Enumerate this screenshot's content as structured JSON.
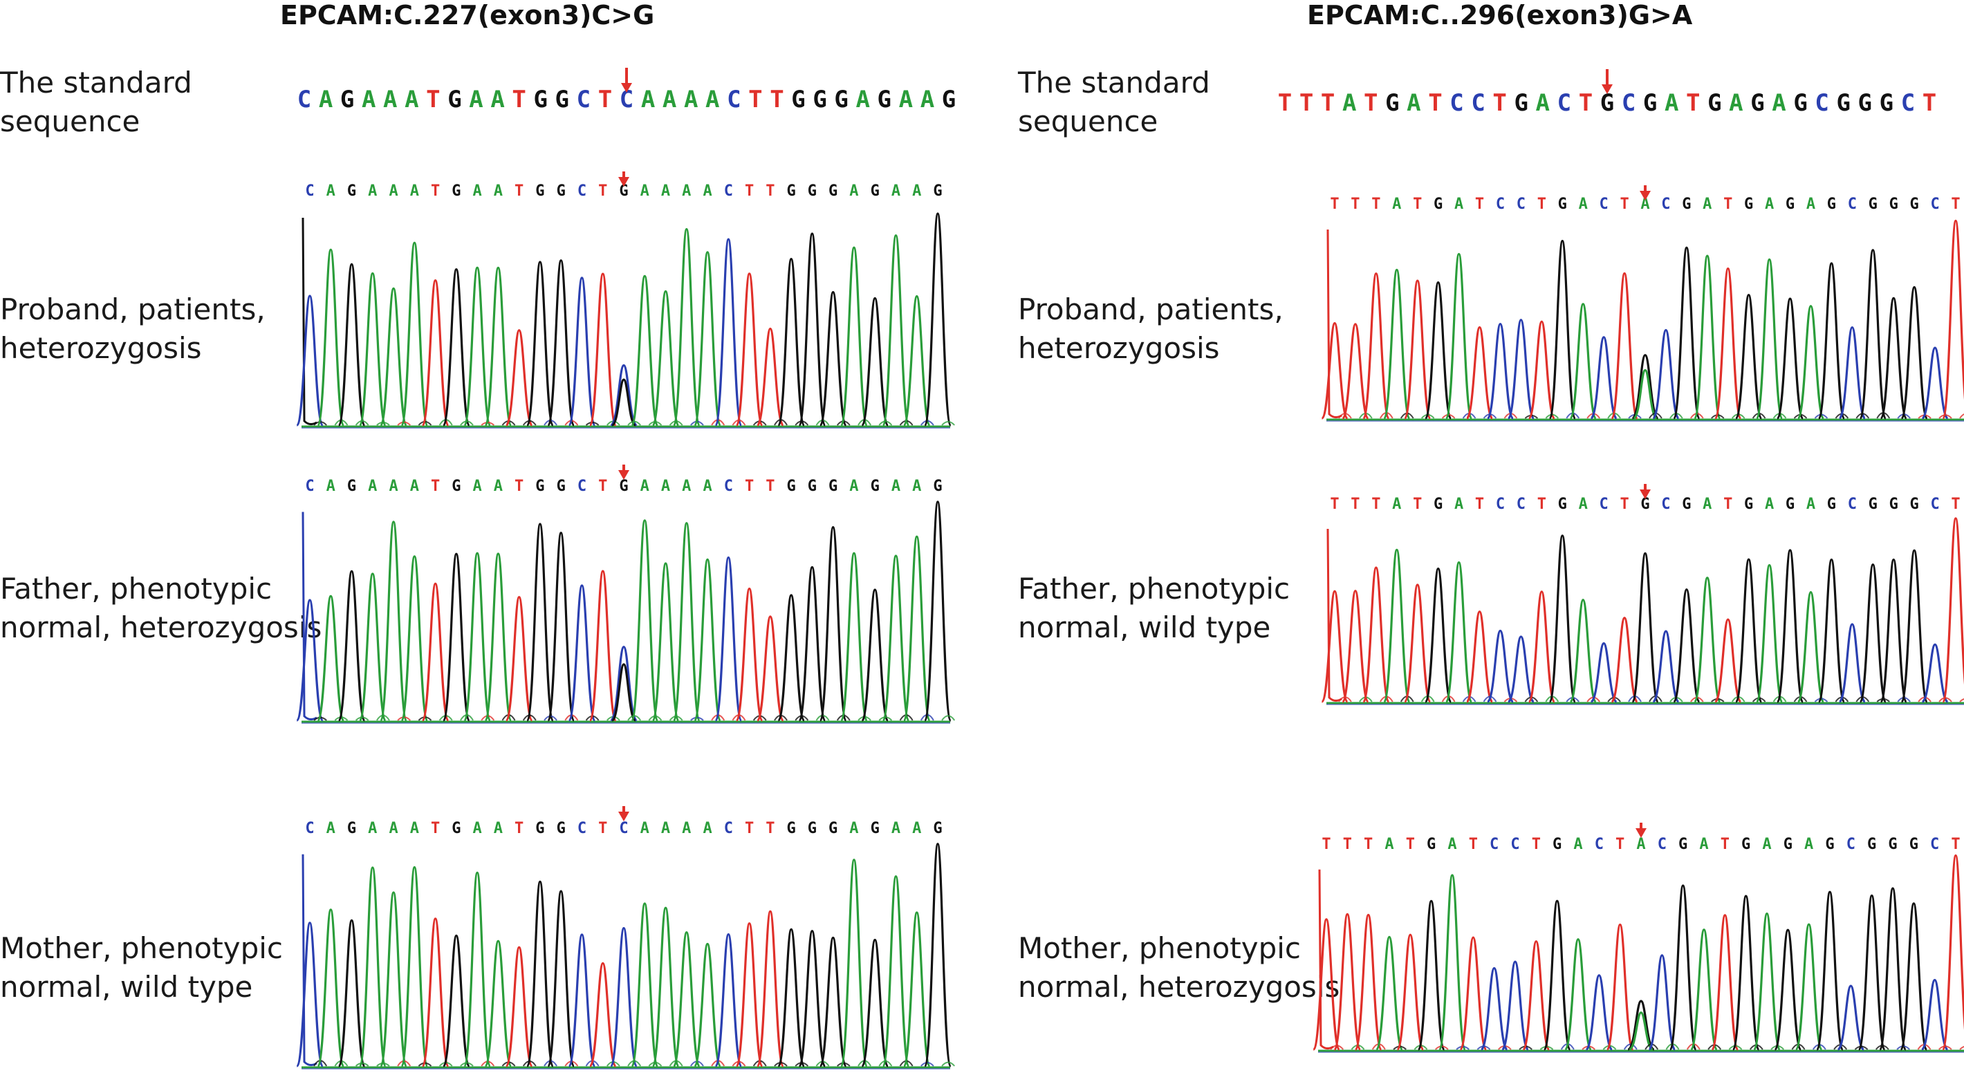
{
  "colors": {
    "A": "#2a9d3a",
    "C": "#2a3fb0",
    "G": "#111111",
    "T": "#e0302a",
    "arrow": "#e0302a",
    "baseline": "#2a9d3a"
  },
  "left_panel": {
    "title": "EPCAM:C.227(exon3)C>G",
    "standard_label": "The standard\nsequence",
    "standard_sequence": "CAGAAATGAATGGCTCAAAACTTGGGAGAAG",
    "mutation_index": 15,
    "tracks": [
      {
        "label": "Proband, patients,\nheterozygosis",
        "sequence": "CAGAAATGAATGGCTGAAAACTTGGGAGAAG",
        "genotype": "heterozygous",
        "alt_base": "G"
      },
      {
        "label": "Father, phenotypic\nnormal, heterozygosis",
        "sequence": "CAGAAATGAATGGCTGAAAACTTGGGAGAAG",
        "genotype": "heterozygous",
        "alt_base": "G"
      },
      {
        "label": "Mother, phenotypic\nnormal, wild type",
        "sequence": "CAGAAATGAATGGCTCAAAACTTGGGAGAAG",
        "genotype": "wild type",
        "alt_base": null
      }
    ]
  },
  "right_panel": {
    "title": "EPCAM:C..296(exon3)G>A",
    "standard_label": "The standard\nsequence",
    "standard_sequence": "TTTATGATCCTGACTGCGATGAGAGCGGGCT",
    "mutation_index": 15,
    "tracks": [
      {
        "label": "Proband, patients,\nheterozygosis",
        "sequence": "TTTATGATCCTGACTACGATGAGAGCGGGCT",
        "genotype": "heterozygous",
        "alt_base": "A"
      },
      {
        "label": "Father, phenotypic\nnormal, wild type",
        "sequence": "TTTATGATCCTGACTGCGATGAGAGCGGGCT",
        "genotype": "wild type",
        "alt_base": null
      },
      {
        "label": "Mother, phenotypic\nnormal, heterozygosis",
        "sequence": "TTTATGATCCTGACTACGATGAGAGCGGGCT",
        "genotype": "heterozygous",
        "alt_base": "A"
      }
    ]
  }
}
